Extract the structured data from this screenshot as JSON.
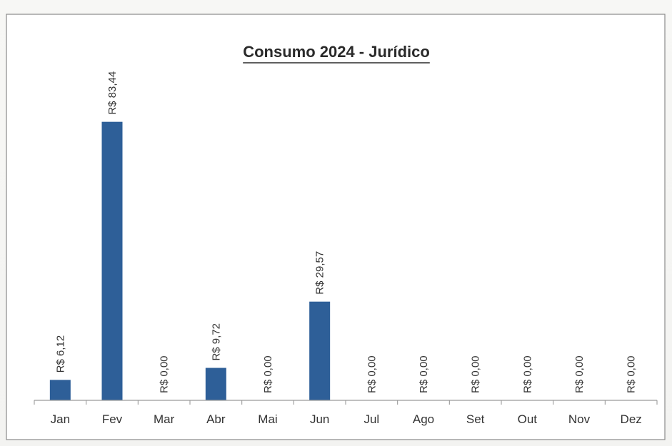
{
  "chart_data": {
    "type": "bar",
    "title": "Consumo 2024 - Jurídico",
    "categories": [
      "Jan",
      "Fev",
      "Mar",
      "Abr",
      "Mai",
      "Jun",
      "Jul",
      "Ago",
      "Set",
      "Out",
      "Nov",
      "Dez"
    ],
    "values": [
      6.12,
      83.44,
      0,
      9.72,
      0,
      29.57,
      0,
      0,
      0,
      0,
      0,
      0
    ],
    "data_labels": [
      "R$ 6,12",
      "R$ 83,44",
      "R$ 0,00",
      "R$ 9,72",
      "R$ 0,00",
      "R$ 29,57",
      "R$ 0,00",
      "R$ 0,00",
      "R$ 0,00",
      "R$ 0,00",
      "R$ 0,00",
      "R$ 0,00"
    ],
    "ylim": [
      0,
      90
    ],
    "grid": false,
    "legend": "none",
    "bar_color": "#2e5f98"
  }
}
